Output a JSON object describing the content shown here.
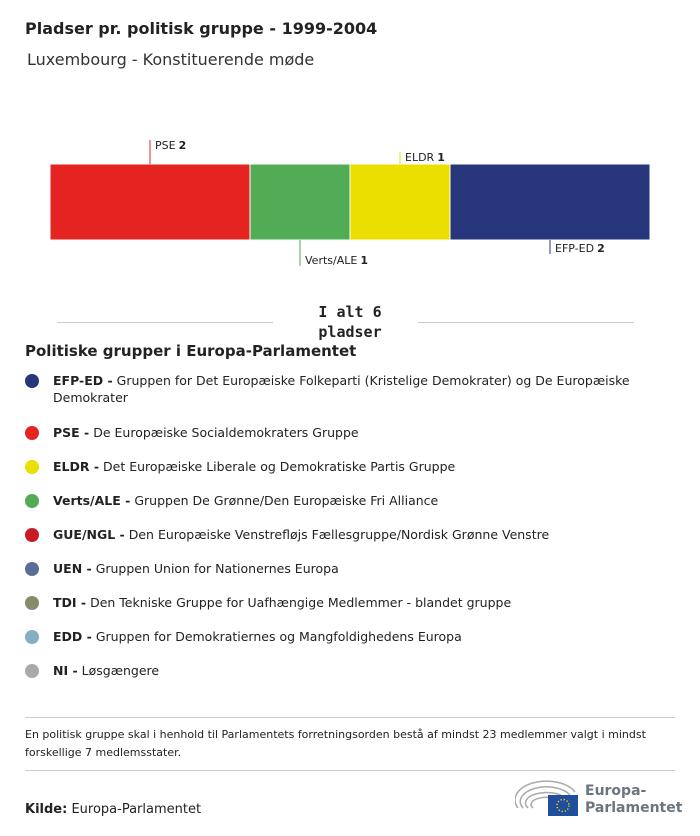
{
  "title": "Pladser pr. politisk gruppe - 1999-2004",
  "subtitle": "Luxembourg - Konstituerende møde",
  "chart_data": {
    "type": "bar",
    "stacked": true,
    "title": "Pladser pr. politisk gruppe - 1999-2004",
    "subtitle": "Luxembourg - Konstituerende møde",
    "categories": [
      "PSE",
      "Verts/ALE",
      "ELDR",
      "EFP-ED"
    ],
    "values": [
      2,
      1,
      1,
      2
    ],
    "colors": [
      "#e52421",
      "#52ac55",
      "#ebdf00",
      "#28367b"
    ],
    "total": 6
  },
  "total_label": {
    "line1": "I alt 6",
    "line2": "pladser"
  },
  "legend": {
    "title": "Politiske grupper i Europa-Parlamentet",
    "items": [
      {
        "abbr": "EFP-ED -",
        "text": "Gruppen for Det Europæiske Folkeparti (Kristelige Demokrater) og De Europæiske Demokrater",
        "color": "#28367b"
      },
      {
        "abbr": "PSE -",
        "text": "De Europæiske Socialdemokraters Gruppe",
        "color": "#e52421"
      },
      {
        "abbr": "ELDR -",
        "text": "Det Europæiske Liberale og Demokratiske Partis Gruppe",
        "color": "#ebdf00"
      },
      {
        "abbr": "Verts/ALE -",
        "text": "Gruppen De Grønne/Den Europæiske Fri Alliance",
        "color": "#52ac55"
      },
      {
        "abbr": "GUE/NGL -",
        "text": "Den Europæiske Venstrefløjs Fællesgruppe/Nordisk Grønne Venstre",
        "color": "#c81d24"
      },
      {
        "abbr": "UEN -",
        "text": "Gruppen Union for Nationernes Europa",
        "color": "#5a6c98"
      },
      {
        "abbr": "TDI -",
        "text": "Den Tekniske Gruppe for Uafhængige Medlemmer - blandet gruppe",
        "color": "#868b6c"
      },
      {
        "abbr": "EDD -",
        "text": "Gruppen for Demokratiernes og Mangfoldighedens Europa",
        "color": "#86aec4"
      },
      {
        "abbr": "NI -",
        "text": "Løsgængere",
        "color": "#aaaaaa"
      }
    ]
  },
  "note": "En politisk gruppe skal i henhold til Parlamentets forretningsorden bestå af mindst 23 medlemmer valgt i mindst forskellige 7 medlemsstater.",
  "source": {
    "label": "Kilde:",
    "value": "Europa-Parlamentet"
  },
  "logo": {
    "line1": "Europa-",
    "line2": "Parlamentet"
  }
}
